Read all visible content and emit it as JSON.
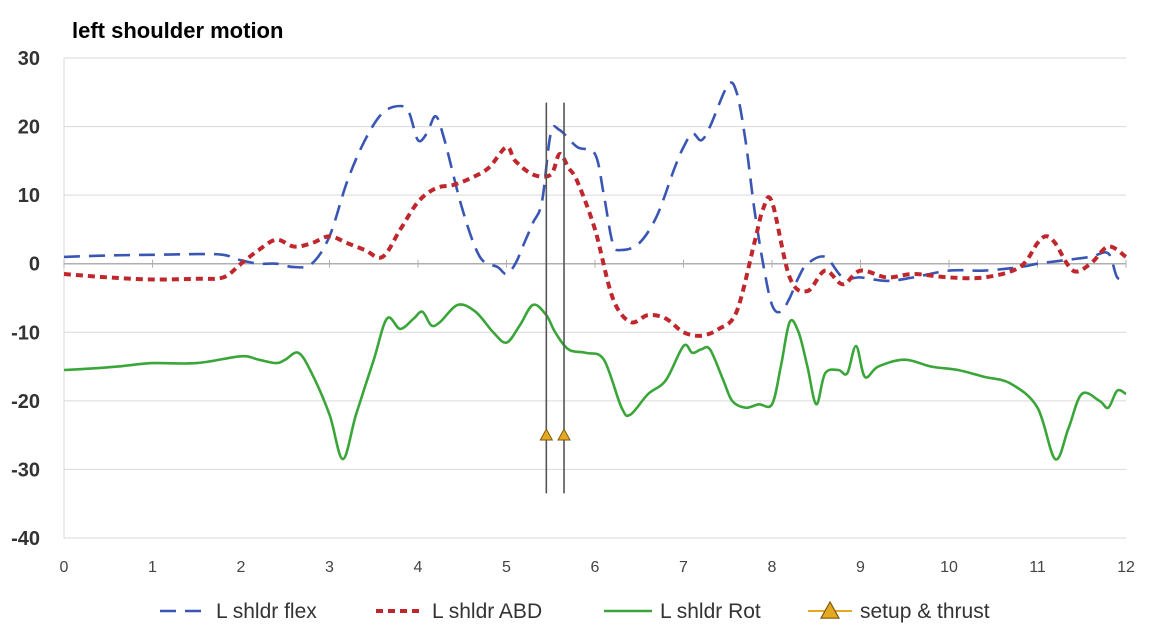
{
  "chart_data": {
    "type": "line",
    "title": "left shoulder motion",
    "xlabel": "",
    "ylabel": "",
    "xlim": [
      0,
      12
    ],
    "ylim": [
      -40,
      30
    ],
    "xticks": [
      0,
      1,
      2,
      3,
      4,
      5,
      6,
      7,
      8,
      9,
      10,
      11,
      12
    ],
    "yticks": [
      -40,
      -30,
      -20,
      -10,
      0,
      10,
      20,
      30
    ],
    "grid": "horizontal",
    "legend_position": "bottom",
    "series": [
      {
        "name": "L shldr flex",
        "color": "#3a56b4",
        "style": "dashed",
        "x": [
          0,
          0.5,
          1.0,
          1.5,
          1.8,
          2.0,
          2.2,
          2.4,
          2.6,
          2.8,
          3.0,
          3.2,
          3.4,
          3.6,
          3.8,
          3.9,
          4.0,
          4.1,
          4.2,
          4.3,
          4.5,
          4.7,
          4.9,
          5.0,
          5.1,
          5.2,
          5.3,
          5.4,
          5.5,
          5.6,
          5.8,
          6.0,
          6.1,
          6.2,
          6.3,
          6.5,
          6.7,
          6.9,
          7.0,
          7.1,
          7.2,
          7.3,
          7.5,
          7.6,
          7.7,
          7.8,
          7.9,
          8.0,
          8.1,
          8.2,
          8.3,
          8.4,
          8.6,
          8.8,
          9.0,
          9.3,
          9.6,
          10.0,
          10.4,
          10.8,
          11.0,
          11.3,
          11.6,
          11.8,
          11.9,
          12.0
        ],
        "y": [
          1,
          1.2,
          1.3,
          1.4,
          1.3,
          0.5,
          0,
          0,
          -0.5,
          0,
          4,
          12,
          18,
          22,
          23,
          22,
          18,
          19,
          21.5,
          18,
          8,
          1,
          -0.5,
          -1.5,
          0,
          3,
          6,
          9,
          19,
          19.5,
          17,
          16,
          10,
          3,
          2,
          3,
          7,
          14,
          17,
          19,
          18,
          20,
          26,
          25,
          18,
          8,
          0,
          -6,
          -7,
          -5,
          -2,
          0,
          1,
          -2,
          -2,
          -2.5,
          -2,
          -1,
          -1,
          -0.5,
          0,
          0.5,
          1,
          1.5,
          -2,
          -2
        ]
      },
      {
        "name": "L shldr ABD",
        "color": "#c0272d",
        "style": "dotted",
        "x": [
          0,
          0.5,
          1.0,
          1.5,
          1.8,
          2.0,
          2.2,
          2.4,
          2.6,
          2.8,
          3.0,
          3.2,
          3.4,
          3.6,
          3.8,
          4.0,
          4.2,
          4.4,
          4.6,
          4.8,
          5.0,
          5.1,
          5.3,
          5.5,
          5.6,
          5.7,
          5.8,
          6.0,
          6.2,
          6.4,
          6.6,
          6.8,
          7.0,
          7.2,
          7.4,
          7.6,
          7.8,
          7.9,
          8.0,
          8.2,
          8.4,
          8.6,
          8.8,
          9.0,
          9.3,
          9.6,
          10.0,
          10.4,
          10.8,
          11.0,
          11.1,
          11.2,
          11.4,
          11.6,
          11.8,
          12.0
        ],
        "y": [
          -1.5,
          -2,
          -2.3,
          -2.2,
          -2,
          0,
          2,
          3.5,
          2.5,
          3,
          4,
          3,
          2,
          1,
          5,
          9,
          11,
          11.5,
          12.5,
          14,
          17,
          15,
          13,
          13,
          16,
          14,
          12,
          5,
          -5,
          -8.5,
          -7.5,
          -8,
          -10,
          -10.5,
          -9.5,
          -7,
          3,
          8,
          9,
          -2,
          -4,
          -1,
          -3,
          -1,
          -2,
          -1.5,
          -2,
          -2,
          -0.5,
          3,
          4,
          3,
          -1,
          0,
          2.5,
          1
        ]
      },
      {
        "name": "L shldr Rot",
        "color": "#3aa63a",
        "style": "solid",
        "x": [
          0,
          0.3,
          0.6,
          1.0,
          1.5,
          2.0,
          2.2,
          2.4,
          2.5,
          2.65,
          2.8,
          3.0,
          3.15,
          3.3,
          3.5,
          3.65,
          3.8,
          3.95,
          4.05,
          4.15,
          4.25,
          4.45,
          4.65,
          4.85,
          5.0,
          5.15,
          5.3,
          5.45,
          5.55,
          5.7,
          5.9,
          6.1,
          6.3,
          6.4,
          6.6,
          6.8,
          7.0,
          7.1,
          7.2,
          7.3,
          7.45,
          7.55,
          7.7,
          7.85,
          8.0,
          8.1,
          8.2,
          8.3,
          8.4,
          8.5,
          8.6,
          8.75,
          8.85,
          8.95,
          9.05,
          9.2,
          9.5,
          9.8,
          10.1,
          10.4,
          10.7,
          11.0,
          11.2,
          11.35,
          11.5,
          11.7,
          11.8,
          11.9,
          12.0
        ],
        "y": [
          -15.5,
          -15.3,
          -15,
          -14.5,
          -14.5,
          -13.5,
          -14,
          -14.5,
          -14,
          -13,
          -16,
          -22,
          -28.5,
          -22,
          -14,
          -8,
          -9.5,
          -8,
          -7,
          -9,
          -8.5,
          -6,
          -7,
          -10,
          -11.5,
          -9,
          -6,
          -7.5,
          -10,
          -12.5,
          -13,
          -14,
          -21,
          -22,
          -19,
          -17,
          -12,
          -13,
          -12.5,
          -12.5,
          -17,
          -20,
          -21,
          -20.5,
          -20.5,
          -15,
          -8.5,
          -10,
          -15,
          -20.5,
          -16,
          -15.5,
          -16,
          -12,
          -16.5,
          -15,
          -14,
          -15,
          -15.5,
          -16.5,
          -17.5,
          -21,
          -28.5,
          -24,
          -19,
          -20,
          -21,
          -18.5,
          -19
        ]
      }
    ],
    "markers": {
      "name": "setup & thrust",
      "color": "#e6a820",
      "x": [
        5.45,
        5.65
      ],
      "y": [
        -25,
        -25
      ],
      "vlines": [
        5.45,
        5.65
      ],
      "vline_range": [
        -33.5,
        23.5
      ]
    }
  }
}
